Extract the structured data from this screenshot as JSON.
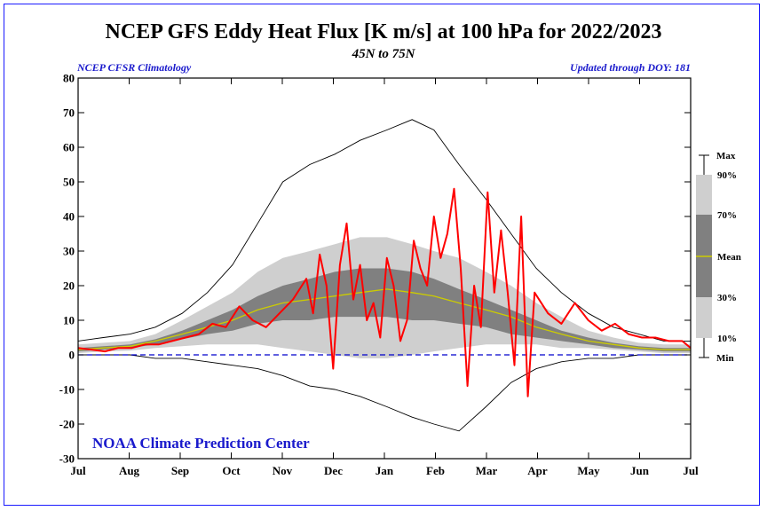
{
  "header": {
    "title": "NCEP GFS Eddy Heat Flux [K m/s] at 100 hPa for 2022/2023",
    "subtitle": "45N to 75N",
    "note_left": "NCEP CFSR Climatology",
    "note_right": "Updated through DOY: 181",
    "credit": "NOAA Climate Prediction Center"
  },
  "colors": {
    "obs": "#ff0000",
    "mean": "#cccc00",
    "band_10_90": "#cfcfcf",
    "band_30_70": "#808080",
    "extreme": "#000000",
    "zero_line": "#0000cc",
    "credit": "#1a1acc",
    "frame": "#1a1aff"
  },
  "chart_data": {
    "type": "line",
    "title": "NCEP GFS Eddy Heat Flux [K m/s] at 100 hPa for 2022/2023",
    "subtitle": "45N to 75N",
    "xlabel": "",
    "ylabel": "",
    "ylim": [
      -30,
      80
    ],
    "yticks": [
      -30,
      -20,
      -10,
      0,
      10,
      20,
      30,
      40,
      50,
      60,
      70,
      80
    ],
    "x_months": [
      "Jul",
      "Aug",
      "Sep",
      "Oct",
      "Nov",
      "Dec",
      "Jan",
      "Feb",
      "Mar",
      "Apr",
      "May",
      "Jun",
      "Jul"
    ],
    "xlim_days": [
      0,
      365
    ],
    "legend": {
      "position": "right",
      "labels": [
        "Max",
        "90%",
        "70%",
        "Mean",
        "30%",
        "10%",
        "Min"
      ]
    },
    "climatology": {
      "days": [
        0,
        15,
        31,
        46,
        62,
        77,
        92,
        107,
        122,
        138,
        153,
        168,
        184,
        199,
        212,
        227,
        243,
        258,
        273,
        288,
        304,
        319,
        334,
        349,
        365
      ],
      "max": [
        4,
        5,
        6,
        8,
        12,
        18,
        26,
        38,
        50,
        55,
        58,
        62,
        65,
        68,
        65,
        55,
        45,
        35,
        25,
        18,
        12,
        8,
        6,
        4,
        4
      ],
      "p90": [
        3,
        3.5,
        4,
        6,
        10,
        14,
        18,
        24,
        28,
        30,
        32,
        34,
        34,
        32,
        30,
        28,
        24,
        20,
        15,
        11,
        7,
        5,
        3.5,
        3,
        3
      ],
      "p70": [
        2,
        2.5,
        3,
        4.5,
        7,
        10,
        13,
        17,
        20,
        22,
        24,
        25,
        25,
        24,
        22,
        19,
        16,
        13,
        10,
        7,
        5,
        3.5,
        2.5,
        2,
        2
      ],
      "mean": [
        1.5,
        2,
        2.5,
        4,
        6,
        8,
        10,
        13,
        15,
        16,
        17,
        18,
        19,
        18,
        17,
        15,
        13,
        11,
        8,
        6,
        4,
        3,
        2,
        1.5,
        1.5
      ],
      "p30": [
        1,
        1.5,
        2,
        3,
        4.5,
        6,
        7,
        9,
        10,
        10,
        11,
        11,
        11,
        10,
        10,
        9,
        8,
        6,
        5,
        4,
        3,
        2,
        1.5,
        1,
        1
      ],
      "p10": [
        0.5,
        1,
        1.2,
        2,
        2.5,
        3,
        3,
        3,
        2,
        1,
        0,
        -1,
        -1,
        0,
        1,
        2,
        3,
        3,
        3,
        2,
        2,
        1.5,
        1,
        0.5,
        0.5
      ],
      "min": [
        0,
        0,
        0,
        -1,
        -1,
        -2,
        -3,
        -4,
        -6,
        -9,
        -10,
        -12,
        -15,
        -18,
        -20,
        -22,
        -15,
        -8,
        -4,
        -2,
        -1,
        -1,
        0,
        0,
        0
      ]
    },
    "series": [
      {
        "name": "2022/2023",
        "days": [
          0,
          8,
          16,
          24,
          32,
          40,
          48,
          56,
          64,
          72,
          80,
          88,
          96,
          104,
          112,
          120,
          128,
          136,
          140,
          144,
          148,
          152,
          156,
          160,
          164,
          168,
          172,
          176,
          180,
          184,
          188,
          192,
          196,
          200,
          204,
          208,
          212,
          216,
          220,
          224,
          228,
          232,
          236,
          240,
          244,
          248,
          252,
          256,
          260,
          264,
          268,
          272,
          280,
          288,
          296,
          304,
          312,
          320,
          328,
          336,
          344,
          352,
          360,
          365
        ],
        "values": [
          2,
          1.5,
          1,
          2,
          2,
          3,
          3,
          4,
          5,
          6,
          9,
          8,
          14,
          10,
          8,
          12,
          16,
          22,
          12,
          29,
          20,
          -4,
          26,
          38,
          16,
          26,
          10,
          15,
          5,
          28,
          20,
          4,
          10,
          33,
          25,
          20,
          40,
          28,
          35,
          48,
          25,
          -9,
          20,
          8,
          47,
          18,
          36,
          18,
          -3,
          40,
          -12,
          18,
          12,
          9,
          15,
          10,
          7,
          9,
          6,
          5,
          5,
          4,
          4,
          2
        ]
      }
    ]
  }
}
